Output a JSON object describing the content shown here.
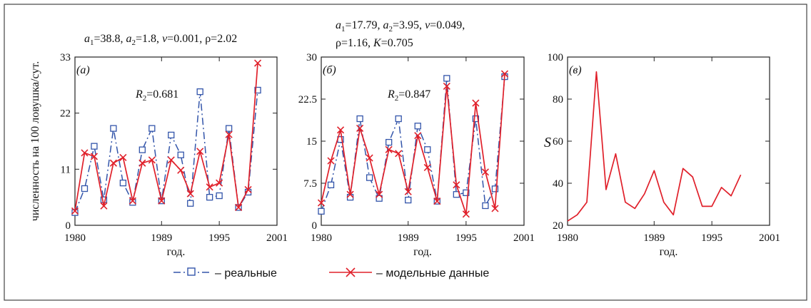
{
  "colors": {
    "real": "#3355aa",
    "model": "#e0202a",
    "frame": "#444444",
    "axis": "#222222"
  },
  "legend": {
    "real_label": "– реальные",
    "model_label": "– модельные данные"
  },
  "chart_data": [
    {
      "type": "line",
      "panel": "a",
      "panel_label": "(а)",
      "params_line1": "a1=38.8, a2=1.8, ν=0.001, ρ=2.02",
      "r2_label": "R2=0.681",
      "ylabel": "численность на 100 ловушка/сут.",
      "xlabel": "год.",
      "xlim": [
        1980,
        2001
      ],
      "ylim": [
        0,
        33
      ],
      "xticks": [
        1980,
        1989,
        1995,
        2001
      ],
      "yticks": [
        0,
        11,
        22,
        33
      ],
      "series": [
        {
          "name": "реальные",
          "style": "dashed-square",
          "x": [
            1980,
            1981,
            1982,
            1983,
            1984,
            1985,
            1986,
            1987,
            1988,
            1989,
            1990,
            1991,
            1992,
            1993,
            1994,
            1995,
            1996,
            1997,
            1998,
            1999,
            2000
          ],
          "values": [
            2.5,
            7.2,
            15.5,
            5.0,
            19.0,
            8.3,
            4.5,
            14.8,
            19.0,
            4.8,
            17.7,
            13.8,
            4.3,
            26.2,
            5.5,
            5.8,
            19.0,
            3.5,
            6.5,
            26.5,
            null
          ]
        },
        {
          "name": "модельные данные",
          "style": "solid-x",
          "x": [
            1980,
            1981,
            1982,
            1983,
            1984,
            1985,
            1986,
            1987,
            1988,
            1989,
            1990,
            1991,
            1992,
            1993,
            1994,
            1995,
            1996,
            1997,
            1998,
            1999,
            2000
          ],
          "values": [
            2.8,
            14.2,
            13.5,
            3.8,
            12.2,
            13.3,
            4.8,
            12.2,
            12.8,
            4.8,
            12.8,
            10.8,
            6.2,
            14.5,
            7.5,
            8.3,
            17.8,
            3.5,
            7.0,
            31.8,
            null
          ]
        }
      ]
    },
    {
      "type": "line",
      "panel": "b",
      "panel_label": "(б)",
      "params_line1": "a1=17.79, a2=3.95, ν=0.049,",
      "params_line2": "ρ=1.16, K=0.705",
      "r2_label": "R2=0.847",
      "xlabel": "год.",
      "xlim": [
        1980,
        2001
      ],
      "ylim": [
        0,
        30
      ],
      "xticks": [
        1980,
        1989,
        1995,
        2001
      ],
      "yticks": [
        0,
        7.5,
        15,
        22.5,
        30
      ],
      "series": [
        {
          "name": "реальные",
          "style": "dashed-square",
          "x": [
            1980,
            1981,
            1982,
            1983,
            1984,
            1985,
            1986,
            1987,
            1988,
            1989,
            1990,
            1991,
            1992,
            1993,
            1994,
            1995,
            1996,
            1997,
            1998,
            1999,
            2000
          ],
          "values": [
            2.5,
            7.2,
            15.3,
            5.0,
            19.0,
            8.5,
            4.8,
            14.8,
            19.0,
            4.5,
            17.7,
            13.5,
            4.3,
            26.2,
            5.5,
            5.8,
            19.0,
            3.5,
            6.5,
            26.5,
            null
          ]
        },
        {
          "name": "модельные данные",
          "style": "solid-x",
          "x": [
            1980,
            1981,
            1982,
            1983,
            1984,
            1985,
            1986,
            1987,
            1988,
            1989,
            1990,
            1991,
            1992,
            1993,
            1994,
            1995,
            1996,
            1997,
            1998,
            1999,
            2000
          ],
          "values": [
            4.0,
            11.5,
            17.0,
            5.5,
            17.3,
            12.0,
            5.5,
            13.5,
            12.8,
            6.0,
            16.0,
            10.3,
            4.3,
            24.8,
            7.2,
            2.0,
            21.8,
            9.5,
            3.0,
            27.0,
            null
          ]
        }
      ]
    },
    {
      "type": "line",
      "panel": "c",
      "panel_label": "(в)",
      "ylabel": "S",
      "xlabel": "год.",
      "xlim": [
        1980,
        2001
      ],
      "ylim": [
        20,
        100
      ],
      "xticks": [
        1980,
        1989,
        1995,
        2001
      ],
      "yticks": [
        20,
        40,
        60,
        80,
        100
      ],
      "series": [
        {
          "name": "S",
          "style": "solid",
          "x": [
            1980,
            1981,
            1982,
            1983,
            1984,
            1985,
            1986,
            1987,
            1988,
            1989,
            1990,
            1991,
            1992,
            1993,
            1994,
            1995,
            1996,
            1997,
            1998,
            1999,
            2000
          ],
          "values": [
            22,
            25,
            31,
            93,
            37,
            54,
            31,
            28,
            35,
            46,
            31,
            25,
            47,
            43,
            29,
            29,
            38,
            34,
            44,
            null,
            null
          ]
        }
      ]
    }
  ]
}
